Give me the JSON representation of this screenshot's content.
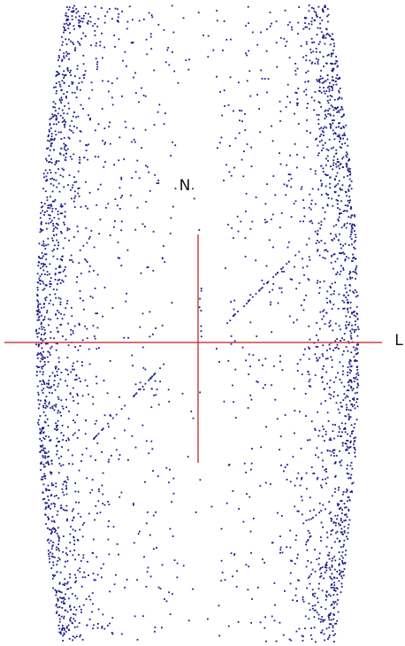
{
  "labels": {
    "north": "N",
    "left": "L"
  }
}
